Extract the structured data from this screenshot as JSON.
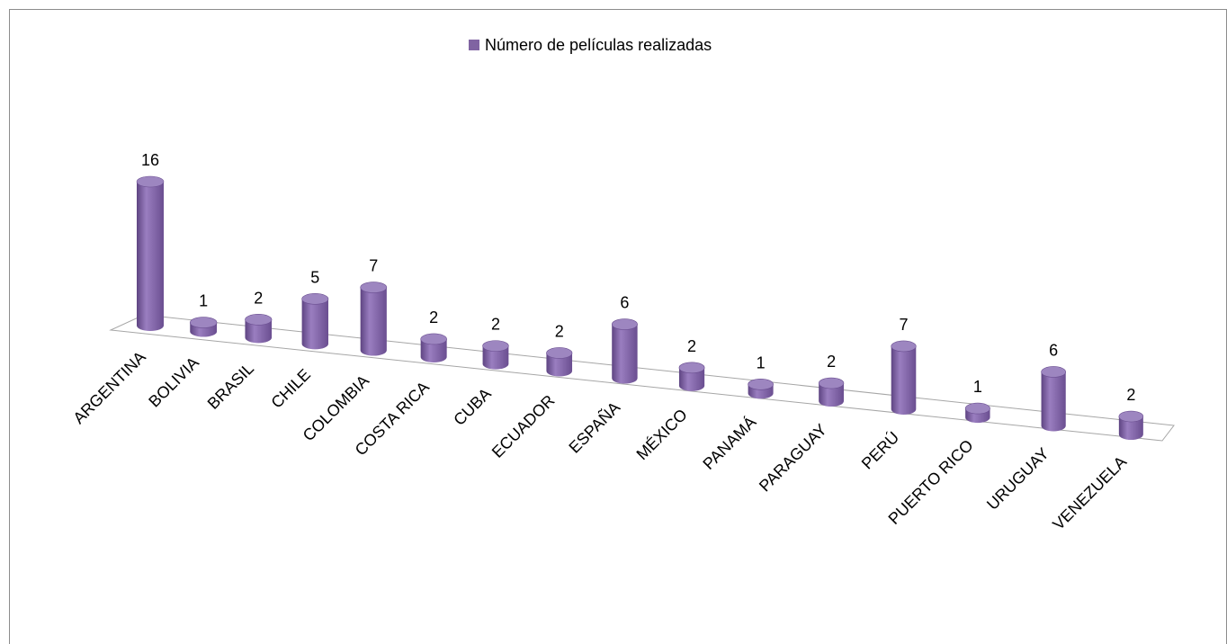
{
  "chart_data": {
    "type": "bar3d",
    "legend": "Número de películas realizadas",
    "color": "#8064a2",
    "categories": [
      "ARGENTINA",
      "BOLIVIA",
      "BRASIL",
      "CHILE",
      "COLOMBIA",
      "COSTA RICA",
      "CUBA",
      "ECUADOR",
      "ESPAÑA",
      "MÉXICO",
      "PANAMÁ",
      "PARAGUAY",
      "PERÚ",
      "PUERTO RICO",
      "URUGUAY",
      "VENEZUELA"
    ],
    "values": [
      16,
      1,
      2,
      5,
      7,
      2,
      2,
      2,
      6,
      2,
      1,
      2,
      7,
      1,
      6,
      2
    ]
  }
}
